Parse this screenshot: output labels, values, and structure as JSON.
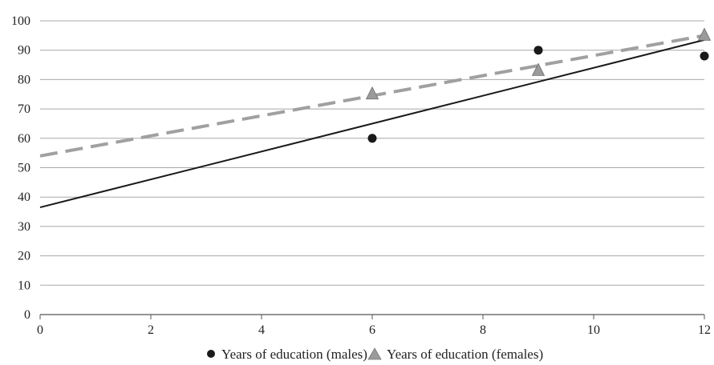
{
  "chart_data": {
    "type": "scatter",
    "xlim": [
      0,
      12
    ],
    "ylim": [
      0,
      100
    ],
    "x_ticks": [
      0,
      2,
      4,
      6,
      8,
      10,
      12
    ],
    "y_ticks": [
      0,
      10,
      20,
      30,
      40,
      50,
      60,
      70,
      80,
      90,
      100
    ],
    "grid": "horizontal",
    "legend_position": "bottom",
    "series": [
      {
        "name": "Years of education (males)",
        "marker": "circle",
        "color": "#1a1a1a",
        "points": [
          {
            "x": 6,
            "y": 60
          },
          {
            "x": 9,
            "y": 90
          },
          {
            "x": 12,
            "y": 88
          }
        ],
        "trendline": {
          "style": "solid",
          "color": "#1a1a1a",
          "from": [
            0,
            36.5
          ],
          "to": [
            12,
            93.5
          ]
        }
      },
      {
        "name": "Years of education (females)",
        "marker": "triangle",
        "color": "#9a9a9a",
        "points": [
          {
            "x": 6,
            "y": 75
          },
          {
            "x": 9,
            "y": 83
          },
          {
            "x": 12,
            "y": 95
          }
        ],
        "trendline": {
          "style": "dashed",
          "color": "#a0a0a0",
          "from": [
            0,
            54
          ],
          "to": [
            12,
            95
          ]
        }
      }
    ]
  },
  "colors": {
    "grid": "#a8a8a8",
    "axis": "#555555",
    "male": "#1a1a1a",
    "female": "#9a9a9a"
  }
}
